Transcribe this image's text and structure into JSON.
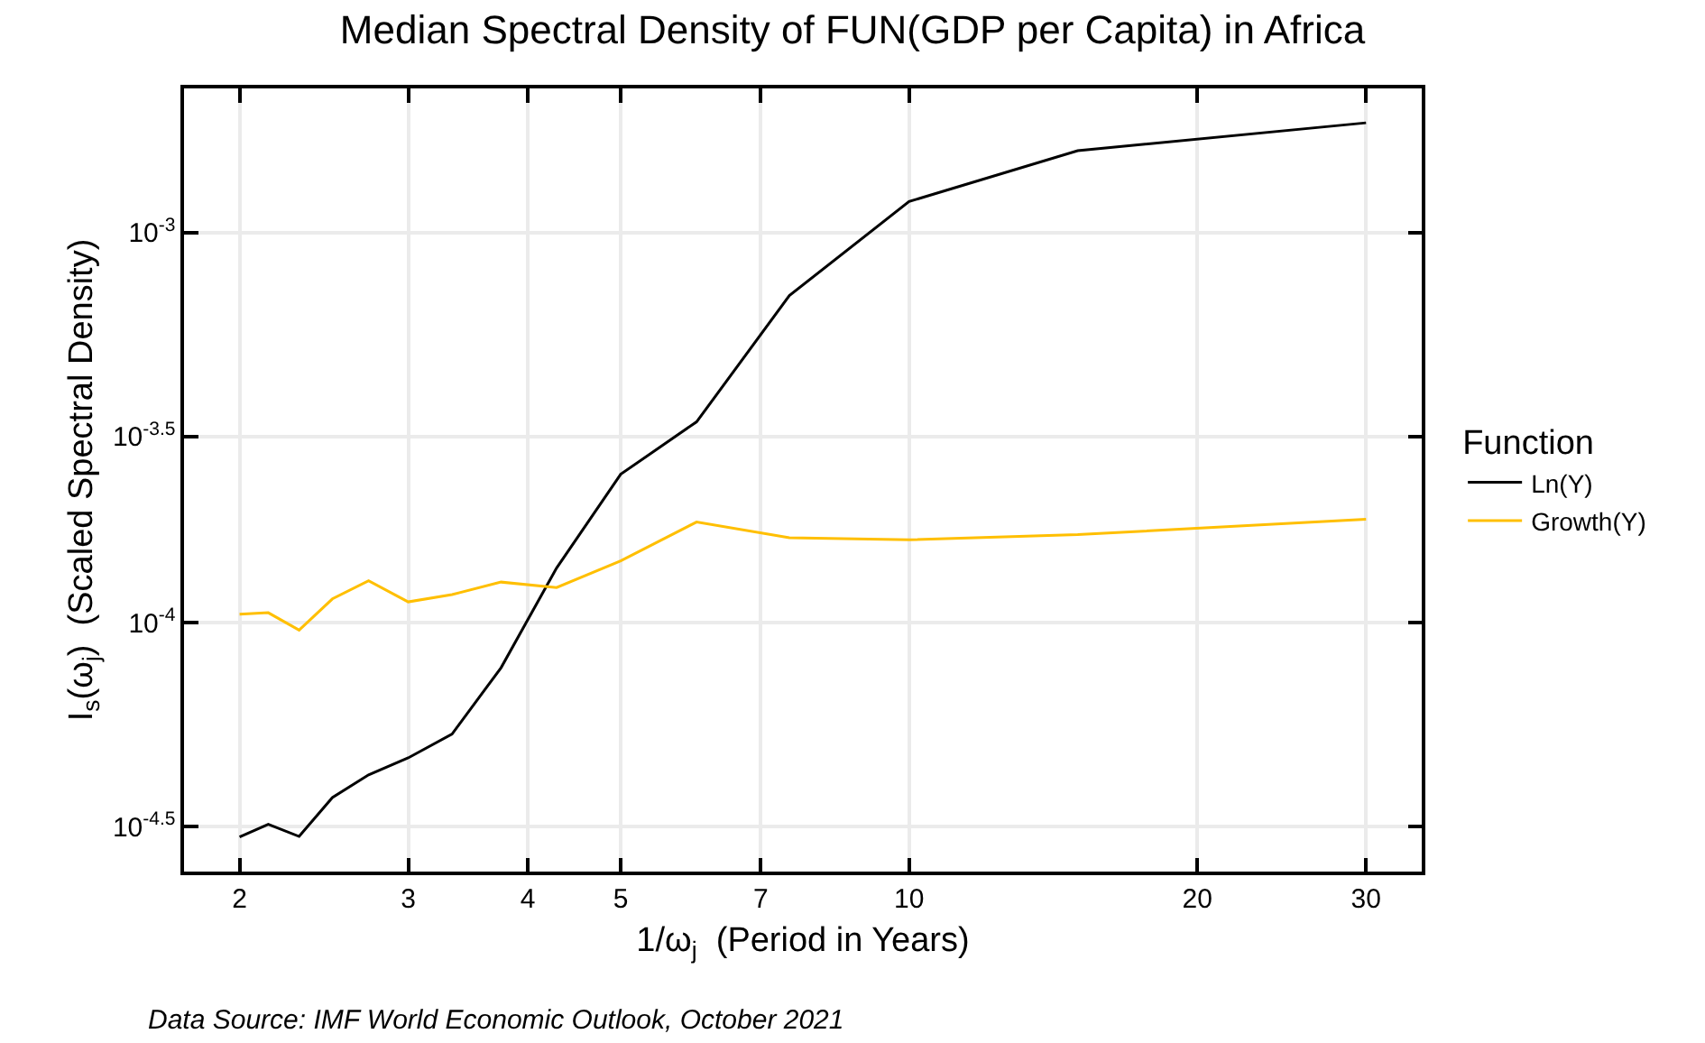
{
  "chart_data": {
    "type": "line",
    "title": "Median Spectral Density of FUN(GDP per Capita) in Africa",
    "xlabel": "1/ω$_{j}$  (Period in Years)",
    "ylabel": "I$_{s}$(ω$_{j}$)  (Scaled Spectral Density)",
    "legend_title": "Function",
    "annotations": [
      "Data Source: IMF World Economic Outlook, October 2021"
    ],
    "x": [
      2,
      2.1429,
      2.3077,
      2.5,
      2.7273,
      3,
      3.3333,
      3.75,
      4.2857,
      5,
      6,
      7.5,
      10,
      15,
      30
    ],
    "series": [
      {
        "name": "Ln(Y)",
        "color": "#000000",
        "values": [
          2.82e-05,
          3.04e-05,
          2.83e-05,
          3.56e-05,
          4.07e-05,
          4.5e-05,
          5.18e-05,
          7.66e-05,
          0.000138,
          0.00024,
          0.000327,
          0.000689,
          0.0012,
          0.00162,
          0.00191
        ]
      },
      {
        "name": "Growth(Y)",
        "color": "#ffbf00",
        "values": [
          0.000105,
          0.000106,
          9.57e-05,
          0.000115,
          0.000128,
          0.000113,
          0.000118,
          0.000127,
          0.000123,
          0.000144,
          0.000181,
          0.000165,
          0.000163,
          0.000168,
          0.000184
        ]
      }
    ],
    "log": "xy",
    "xlim": [
      1.75,
      34.3
    ],
    "xticks": [
      2,
      3,
      4,
      5,
      7,
      10,
      20,
      30
    ],
    "ylim": [
      2.3e-05,
      0.00234
    ],
    "yticks": [
      {
        "value": 0.001,
        "label": "10$^{-3}$"
      },
      {
        "value": 0.0003,
        "label": "10$^{-3.5}$"
      },
      {
        "value": 0.0001,
        "label": "10$^{-4}$"
      },
      {
        "value": 3e-05,
        "label": "10$^{-4.5}$"
      }
    ],
    "grid": true,
    "legend": "right",
    "marker": "none",
    "line_style": "solid"
  }
}
